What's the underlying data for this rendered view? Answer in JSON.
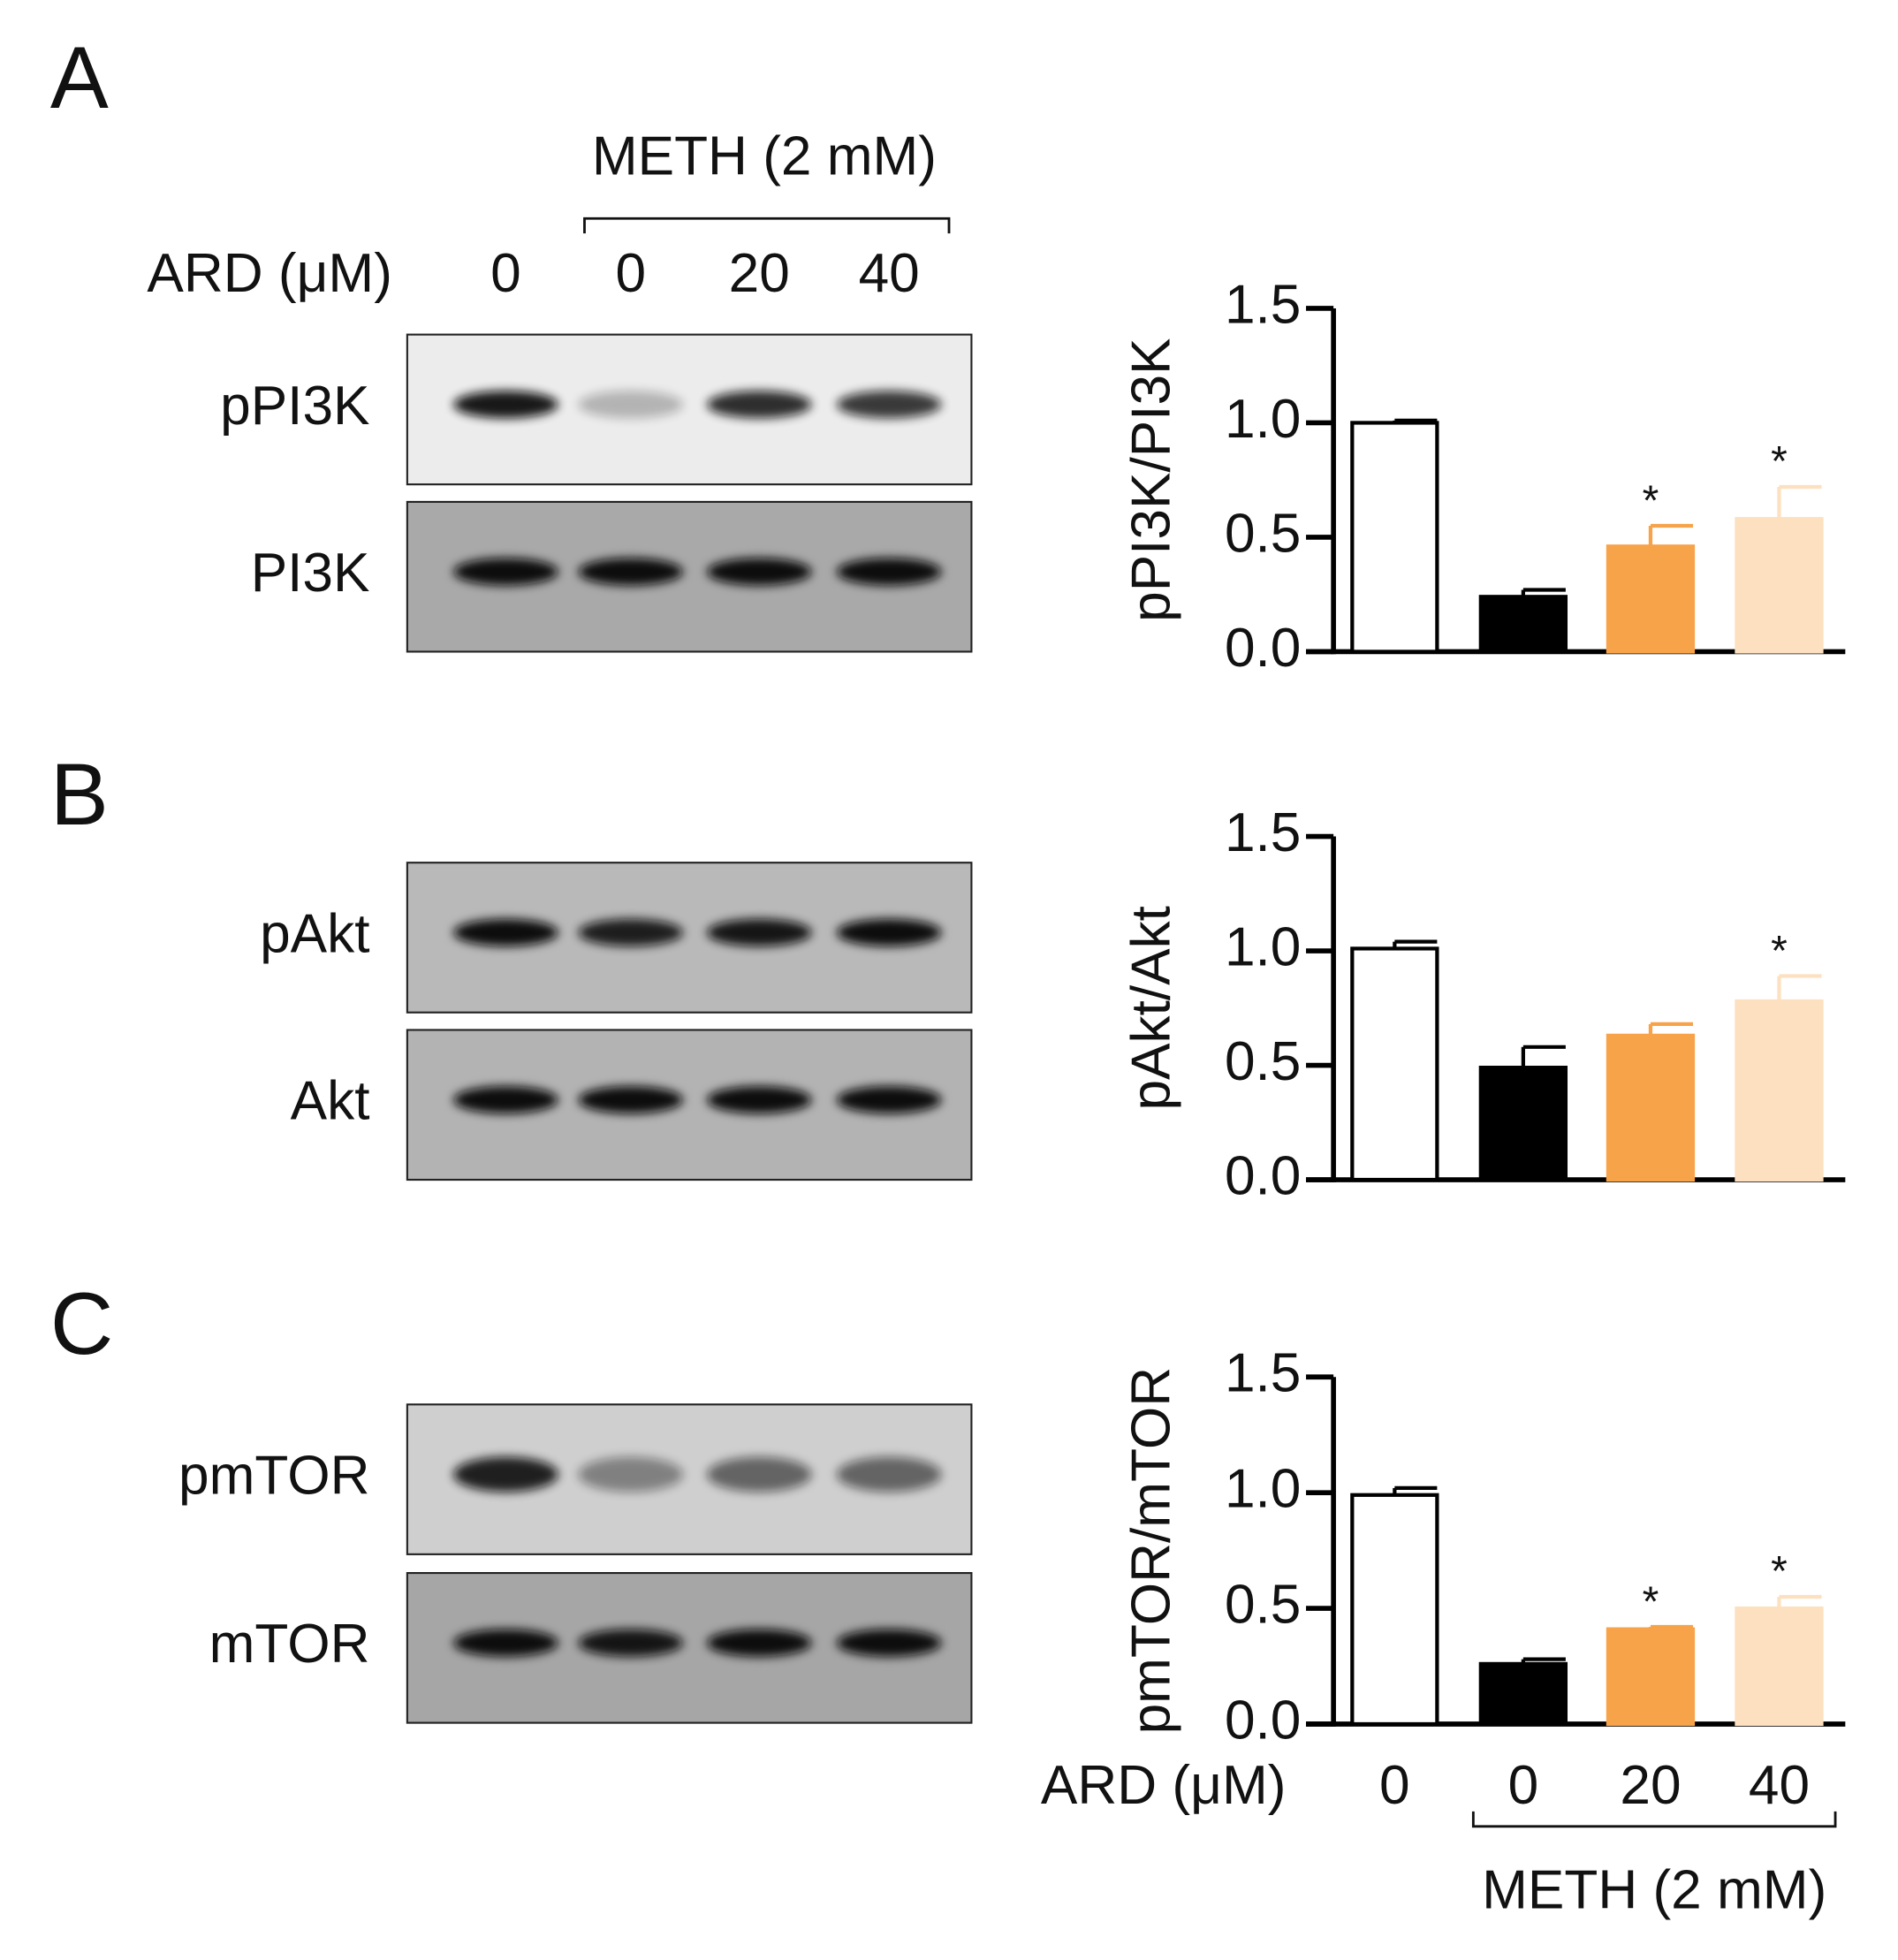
{
  "panels": [
    "A",
    "B",
    "C"
  ],
  "blots": {
    "group_label": "METH (2 mM)",
    "dose_label": "ARD (μM)",
    "doses": [
      "0",
      "0",
      "20",
      "40"
    ],
    "rows": [
      [
        "pPI3K",
        "PI3K"
      ],
      [
        "pAkt",
        "Akt"
      ],
      [
        "pmTOR",
        "mTOR"
      ]
    ]
  },
  "chart_data": [
    {
      "type": "bar",
      "ylabel": "pPI3K/PI3K",
      "values": [
        1.0,
        0.24,
        0.46,
        0.58
      ],
      "errors": [
        0.01,
        0.03,
        0.09,
        0.14
      ],
      "colors": [
        "#ffffff",
        "#000000",
        "#f7a34a",
        "#fde0bf"
      ],
      "significance": [
        null,
        null,
        "*",
        "*"
      ],
      "ylim": [
        0,
        1.5
      ],
      "yticks": [
        {
          "value": 0,
          "label": "0.0"
        },
        0.5,
        {
          "value": 1,
          "label": "1.0"
        },
        1.5
      ]
    },
    {
      "type": "bar",
      "ylabel": "pAkt/Akt",
      "values": [
        1.01,
        0.49,
        0.63,
        0.78
      ],
      "errors": [
        0.03,
        0.09,
        0.05,
        0.11
      ],
      "colors": [
        "#ffffff",
        "#000000",
        "#f7a34a",
        "#fde0bf"
      ],
      "significance": [
        null,
        null,
        null,
        "*"
      ],
      "ylim": [
        0,
        1.5
      ],
      "yticks": [
        {
          "value": 0,
          "label": "0.0"
        },
        0.5,
        {
          "value": 1,
          "label": "1.0"
        },
        1.5
      ]
    },
    {
      "type": "bar",
      "ylabel": "pmTOR/mTOR",
      "values": [
        0.99,
        0.26,
        0.41,
        0.5
      ],
      "errors": [
        0.03,
        0.02,
        0.01,
        0.05
      ],
      "colors": [
        "#ffffff",
        "#000000",
        "#f7a34a",
        "#fde0bf"
      ],
      "significance": [
        null,
        null,
        "*",
        "*"
      ],
      "ylim": [
        0,
        1.5
      ],
      "yticks": [
        {
          "value": 0,
          "label": "0.0"
        },
        0.5,
        {
          "value": 1,
          "label": "1.0"
        },
        1.5
      ],
      "xlabel": "ARD (μM)",
      "categories": [
        "0",
        "0",
        "20",
        "40"
      ],
      "group_label": "METH (2 mM)"
    }
  ]
}
